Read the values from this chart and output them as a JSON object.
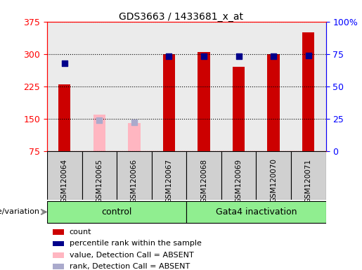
{
  "title": "GDS3663 / 1433681_x_at",
  "samples": [
    "GSM120064",
    "GSM120065",
    "GSM120066",
    "GSM120067",
    "GSM120068",
    "GSM120069",
    "GSM120070",
    "GSM120071"
  ],
  "count_values": [
    230,
    null,
    null,
    300,
    305,
    270,
    300,
    350
  ],
  "count_absent": [
    null,
    160,
    140,
    null,
    null,
    null,
    null,
    null
  ],
  "rank_values": [
    68,
    null,
    null,
    73,
    73,
    73,
    73,
    74
  ],
  "rank_absent": [
    null,
    24,
    22,
    null,
    null,
    null,
    null,
    null
  ],
  "ylim": [
    75,
    375
  ],
  "y2lim": [
    0,
    100
  ],
  "yticks": [
    75,
    150,
    225,
    300,
    375
  ],
  "y2ticks": [
    0,
    25,
    50,
    75,
    100
  ],
  "y2ticklabels": [
    "0",
    "25",
    "50",
    "75",
    "100%"
  ],
  "bar_color_red": "#cc0000",
  "bar_color_pink": "#ffb6c1",
  "dot_color_blue": "#00008b",
  "dot_color_lightblue": "#aaaacc",
  "bar_width": 0.35,
  "dot_size": 30,
  "plot_bg": "#f5f5f5",
  "col_bg": "#d8d8d8",
  "group_color": "#90ee90",
  "legend_items": [
    {
      "label": "count",
      "color": "#cc0000"
    },
    {
      "label": "percentile rank within the sample",
      "color": "#00008b"
    },
    {
      "label": "value, Detection Call = ABSENT",
      "color": "#ffb6c1"
    },
    {
      "label": "rank, Detection Call = ABSENT",
      "color": "#aaaacc"
    }
  ]
}
